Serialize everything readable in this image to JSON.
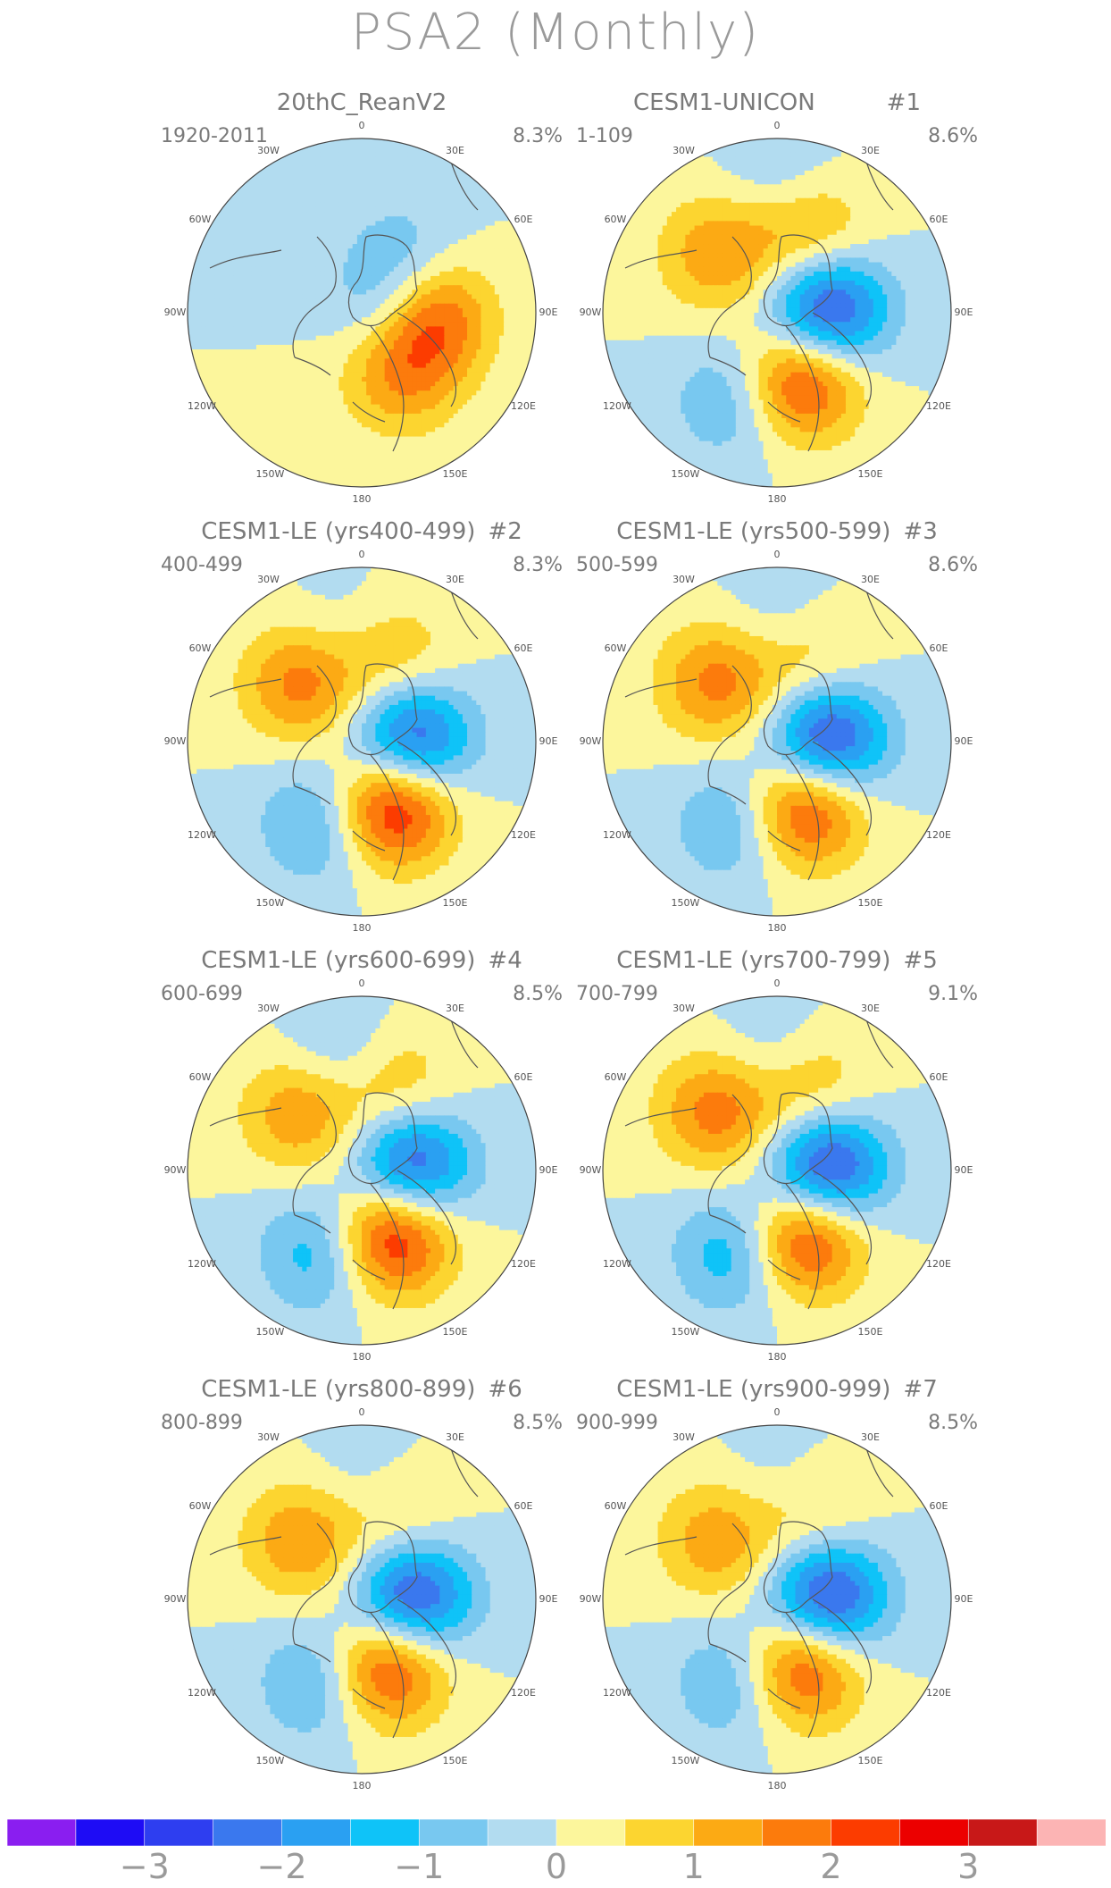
{
  "title": "PSA2 (Monthly)",
  "chart_data": [
    {
      "type": "heatmap",
      "title": "20thC_ReanV2",
      "number": "",
      "period": "1920-2011",
      "explained_variance": "8.3%",
      "centers": [
        [
          -2.2,
          1.4,
          0.22
        ],
        [
          3.2,
          1.6,
          0.36
        ],
        [
          1.4,
          2.6,
          0.42
        ],
        [
          -0.6,
          0.6,
          0.45
        ]
      ]
    },
    {
      "type": "heatmap",
      "title": "CESM1-UNICON",
      "number": "#1",
      "period": "1-109",
      "explained_variance": "8.6%",
      "centers": [
        [
          -3.2,
          1.55,
          0.28
        ],
        [
          2.8,
          2.8,
          0.4
        ],
        [
          -1.2,
          3.6,
          0.55
        ],
        [
          1.4,
          5.5,
          0.48
        ],
        [
          1.6,
          0.35,
          0.5
        ],
        [
          -0.8,
          0.05,
          0.72
        ]
      ]
    },
    {
      "type": "heatmap",
      "title": "CESM1-LE (yrs400-499)",
      "number": "#2",
      "period": "400-499",
      "explained_variance": "8.3%",
      "centers": [
        [
          -3.0,
          1.55,
          0.28
        ],
        [
          3.2,
          2.7,
          0.4
        ],
        [
          -1.4,
          3.6,
          0.52
        ],
        [
          1.8,
          5.5,
          0.48
        ],
        [
          1.2,
          0.35,
          0.5
        ],
        [
          -0.6,
          6.1,
          0.6
        ]
      ]
    },
    {
      "type": "heatmap",
      "title": "CESM1-LE (yrs500-599)",
      "number": "#3",
      "period": "500-599",
      "explained_variance": "8.6%",
      "centers": [
        [
          -3.2,
          1.55,
          0.28
        ],
        [
          2.8,
          2.75,
          0.4
        ],
        [
          -1.3,
          3.6,
          0.52
        ],
        [
          1.7,
          5.5,
          0.48
        ],
        [
          1.3,
          0.35,
          0.5
        ],
        [
          -0.8,
          0.05,
          0.65
        ]
      ]
    },
    {
      "type": "heatmap",
      "title": "CESM1-LE (yrs600-699)",
      "number": "#4",
      "period": "600-699",
      "explained_variance": "8.5%",
      "centers": [
        [
          -3.0,
          1.5,
          0.28
        ],
        [
          3.1,
          2.7,
          0.4
        ],
        [
          -1.5,
          3.6,
          0.52
        ],
        [
          1.6,
          5.5,
          0.48
        ],
        [
          1.3,
          0.35,
          0.5
        ],
        [
          -1.0,
          6.1,
          0.62
        ]
      ]
    },
    {
      "type": "heatmap",
      "title": "CESM1-LE (yrs700-799)",
      "number": "#5",
      "period": "700-799",
      "explained_variance": "9.1%",
      "centers": [
        [
          -3.3,
          1.55,
          0.28
        ],
        [
          2.9,
          2.75,
          0.4
        ],
        [
          -1.6,
          3.6,
          0.52
        ],
        [
          1.8,
          5.5,
          0.48
        ],
        [
          1.5,
          0.35,
          0.5
        ],
        [
          -0.9,
          0.0,
          0.62
        ]
      ]
    },
    {
      "type": "heatmap",
      "title": "CESM1-LE (yrs800-899)",
      "number": "#6",
      "period": "800-899",
      "explained_variance": "8.5%",
      "centers": [
        [
          -3.1,
          1.55,
          0.28
        ],
        [
          2.8,
          2.8,
          0.4
        ],
        [
          -1.4,
          3.6,
          0.52
        ],
        [
          1.5,
          5.5,
          0.48
        ],
        [
          1.2,
          0.35,
          0.5
        ],
        [
          -0.8,
          0.05,
          0.62
        ]
      ]
    },
    {
      "type": "heatmap",
      "title": "CESM1-LE (yrs900-999)",
      "number": "#7",
      "period": "900-999",
      "explained_variance": "8.5%",
      "centers": [
        [
          -3.2,
          1.55,
          0.28
        ],
        [
          2.7,
          2.8,
          0.4
        ],
        [
          -1.3,
          3.6,
          0.52
        ],
        [
          1.4,
          5.5,
          0.48
        ],
        [
          1.2,
          0.35,
          0.5
        ],
        [
          -0.7,
          0.05,
          0.62
        ]
      ]
    }
  ],
  "longitude_labels": [
    "0",
    "30E",
    "60E",
    "90E",
    "120E",
    "150E",
    "180",
    "150W",
    "120W",
    "90W",
    "60W",
    "30W"
  ],
  "colorbar": {
    "colors": [
      "#8a1ef0",
      "#1e0cf5",
      "#2e3ef0",
      "#3a78ee",
      "#2aa0f2",
      "#0fc3f8",
      "#78c8f0",
      "#b2dcf0",
      "#fcf69c",
      "#fcd530",
      "#fcaa14",
      "#fc7b0c",
      "#fc3c00",
      "#ec0000",
      "#c81818",
      "#fcb4b4"
    ],
    "boundaries": [
      -3.5,
      -3,
      -2.5,
      -2,
      -1.5,
      -1,
      -0.5,
      0,
      0.5,
      1,
      1.5,
      2,
      2.5,
      3,
      3.5
    ],
    "tick_labels": [
      "-3",
      "-2",
      "-1",
      "0",
      "1",
      "2",
      "3"
    ]
  }
}
